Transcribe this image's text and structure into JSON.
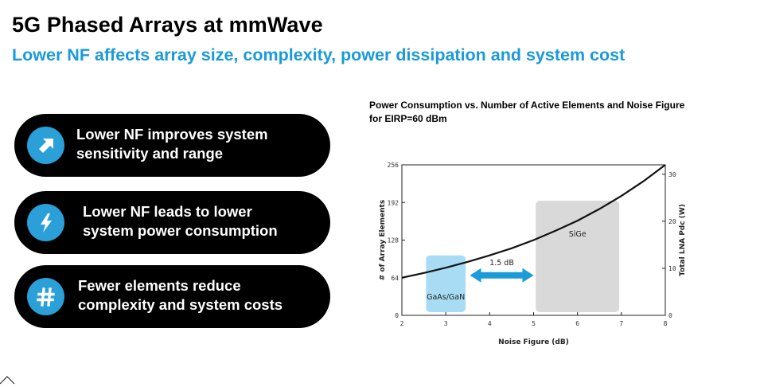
{
  "title": "5G Phased Arrays at mmWave",
  "subtitle": "Lower NF affects array size, complexity, power dissipation and system cost",
  "bullets": [
    {
      "icon": "arrow-up-right-icon",
      "text": "Lower NF improves system\nsensitivity and range"
    },
    {
      "icon": "lightning-bolt-icon",
      "text": "Lower NF leads to lower\nsystem power consumption"
    },
    {
      "icon": "hash-icon",
      "text": "Fewer elements reduce\ncomplexity and system costs"
    }
  ],
  "colors": {
    "accent": "#1a9ad9",
    "pill_background": "#000000",
    "icon_circle": "#2a9fd8",
    "gaas_region": "#a8dcf5",
    "sige_region": "#d9d9d9",
    "arrow": "#1b9bd7"
  },
  "chart_data": {
    "type": "line",
    "title": "Power Consumption vs. Number of Active Elements and Noise Figure\nfor EIRP=60 dBm",
    "xlabel": "Noise Figure (dB)",
    "ylabel": "# of Array Elements",
    "y2label": "Total LNA Pdc (W)",
    "xlim": [
      2,
      8
    ],
    "ylim": [
      0,
      256
    ],
    "y2lim": [
      0,
      32
    ],
    "x_ticks": [
      "2",
      "3",
      "4",
      "5",
      "6",
      "7",
      "8"
    ],
    "y_ticks": [
      "0",
      "64",
      "128",
      "192",
      "256"
    ],
    "y2_ticks": [
      "0",
      "10",
      "20",
      "30"
    ],
    "series": [
      {
        "x": [
          2,
          2.5,
          3,
          3.5,
          4,
          4.5,
          5,
          5.5,
          6,
          6.5,
          7,
          7.5,
          8
        ],
        "values": [
          64,
          72,
          81,
          91,
          102,
          114,
          128,
          144,
          161,
          181,
          203,
          228,
          256
        ]
      }
    ],
    "regions": [
      {
        "label": "GaAs/GaN",
        "x_range": [
          2.55,
          3.45
        ],
        "y_range": [
          0,
          102
        ]
      },
      {
        "label": "SiGe",
        "x_range": [
          5.05,
          6.95
        ],
        "y_range": [
          0,
          195
        ]
      }
    ],
    "annotations": [
      {
        "label": "1.5 dB",
        "x_range": [
          3.55,
          5.0
        ],
        "y": 68
      }
    ],
    "grid": false
  }
}
